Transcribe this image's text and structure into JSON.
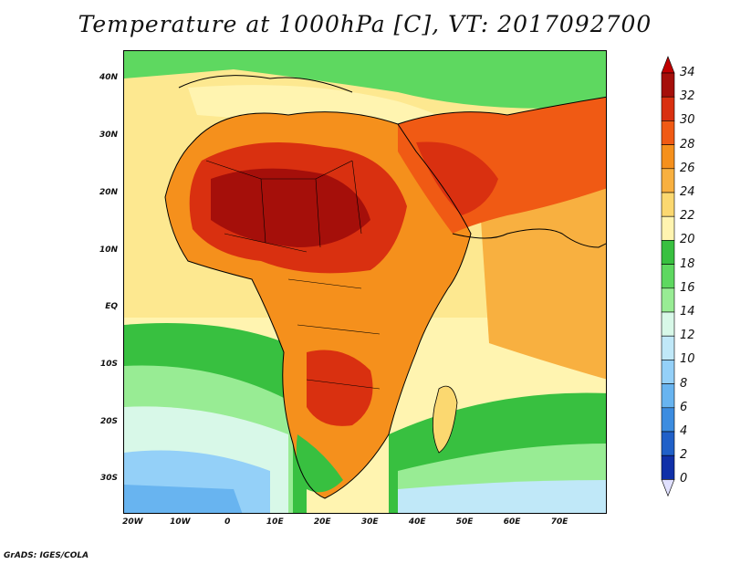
{
  "title": "Temperature at 1000hPa [C], VT: 2017092700",
  "credit": "GrADS: IGES/COLA",
  "map": {
    "lon_range": [
      -22,
      80
    ],
    "lat_range": [
      -36,
      45
    ],
    "lat_ticks": [
      {
        "value": 40,
        "label": "40N"
      },
      {
        "value": 30,
        "label": "30N"
      },
      {
        "value": 20,
        "label": "20N"
      },
      {
        "value": 10,
        "label": "10N"
      },
      {
        "value": 0,
        "label": "EQ"
      },
      {
        "value": -10,
        "label": "10S"
      },
      {
        "value": -20,
        "label": "20S"
      },
      {
        "value": -30,
        "label": "30S"
      }
    ],
    "lon_ticks": [
      {
        "value": -20,
        "label": "20W"
      },
      {
        "value": -10,
        "label": "10W"
      },
      {
        "value": 0,
        "label": "0"
      },
      {
        "value": 10,
        "label": "10E"
      },
      {
        "value": 20,
        "label": "20E"
      },
      {
        "value": 30,
        "label": "30E"
      },
      {
        "value": 40,
        "label": "40E"
      },
      {
        "value": 50,
        "label": "50E"
      },
      {
        "value": 60,
        "label": "60E"
      },
      {
        "value": 70,
        "label": "70E"
      }
    ]
  },
  "colorbar": {
    "labels": [
      "34",
      "32",
      "30",
      "28",
      "26",
      "24",
      "22",
      "20",
      "18",
      "16",
      "14",
      "12",
      "10",
      "8",
      "6",
      "4",
      "2",
      "0"
    ],
    "colors": [
      "#a50f0a",
      "#d93010",
      "#f05a14",
      "#f5901c",
      "#f8b040",
      "#fbd870",
      "#fff4b0",
      "#38c040",
      "#5ed860",
      "#98ec94",
      "#d8f8e8",
      "#c0e8f8",
      "#94d0f8",
      "#68b4f0",
      "#3c8ce0",
      "#2060c8",
      "#1030a8",
      "#081a70"
    ],
    "top_color": "#c00000",
    "bottom_color": "#e0e0ff"
  }
}
